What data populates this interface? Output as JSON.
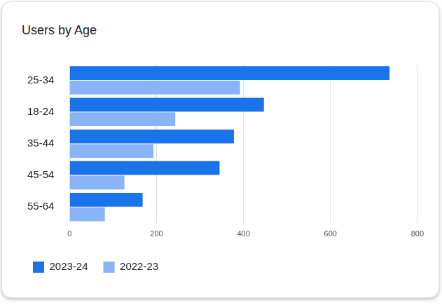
{
  "chart_data": {
    "type": "bar",
    "title": "Users by Age",
    "orientation": "horizontal",
    "categories": [
      "25-34",
      "18-24",
      "35-44",
      "45-54",
      "55-64"
    ],
    "series": [
      {
        "name": "2023-24",
        "color": "#1a73e8",
        "values": [
          736,
          447,
          378,
          345,
          168
        ]
      },
      {
        "name": "2022-23",
        "color": "#8ab4f8",
        "values": [
          392,
          243,
          193,
          126,
          81
        ]
      }
    ],
    "xlim": [
      0,
      800
    ],
    "xticks": [
      0,
      200,
      400,
      600,
      800
    ],
    "grid": true,
    "legend": "bottom-left"
  }
}
